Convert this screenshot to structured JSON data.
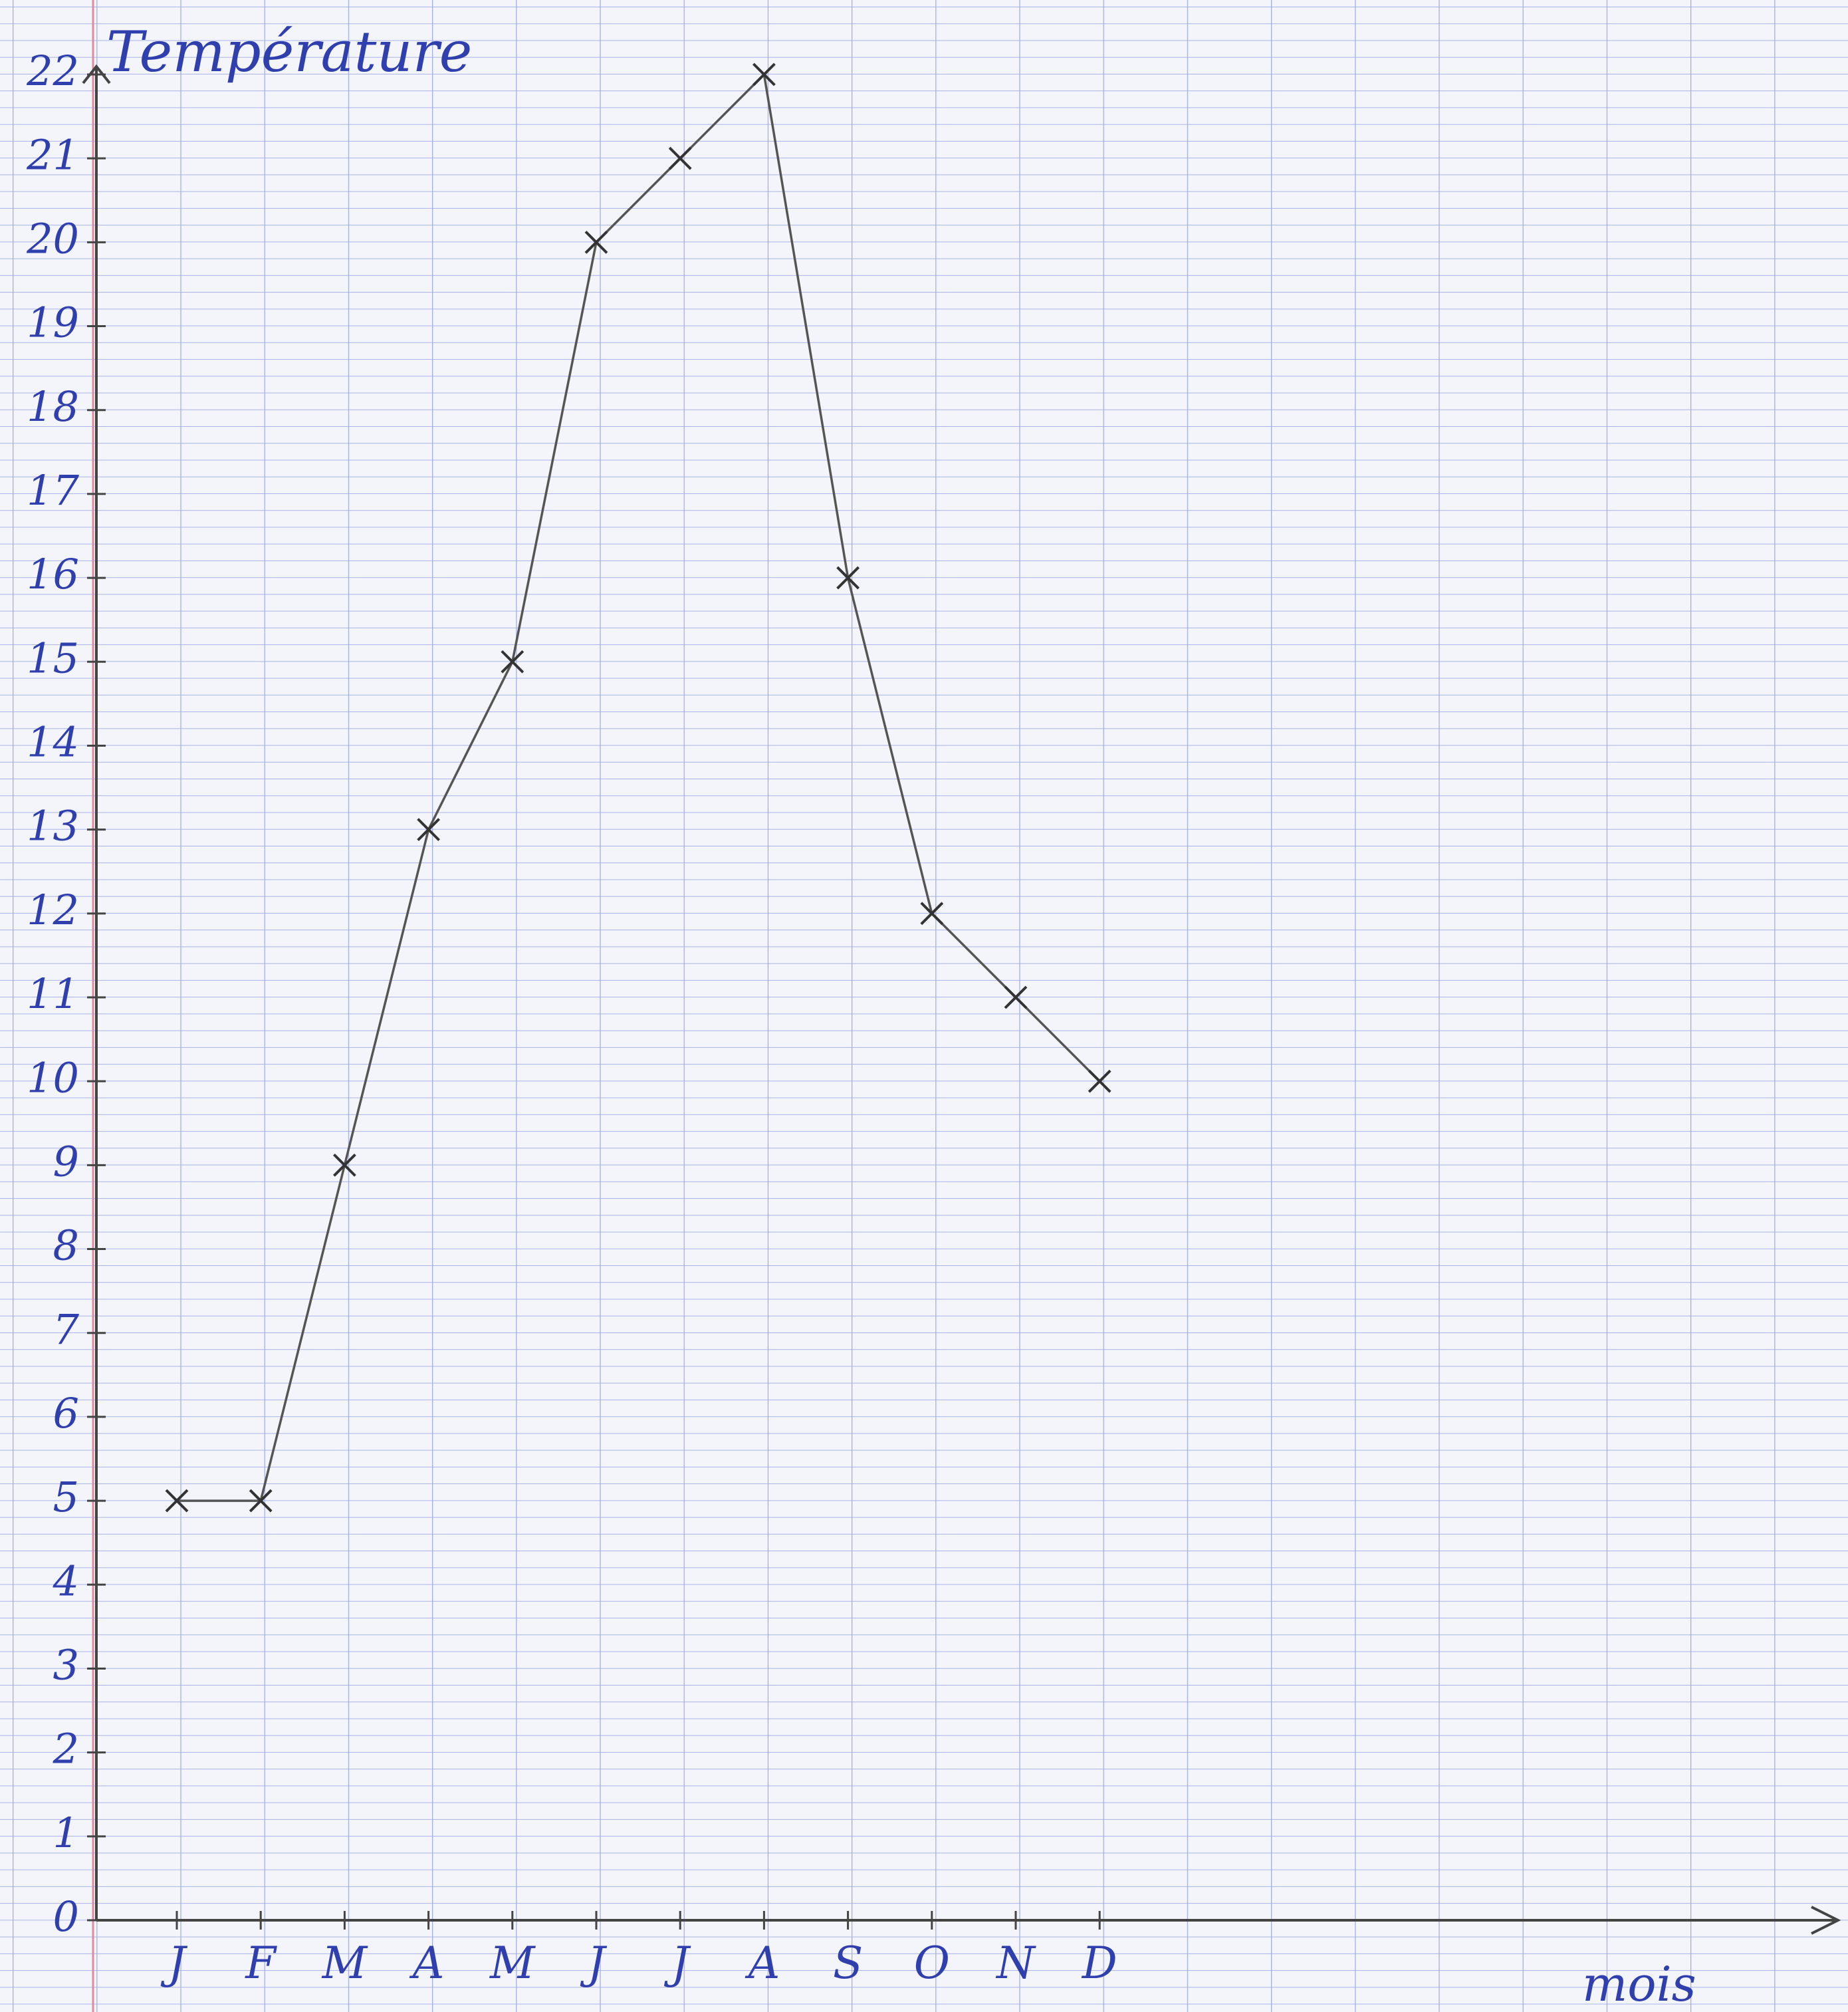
{
  "chart_data": {
    "type": "line",
    "title": "Température",
    "x_label": "mois",
    "categories": [
      "J",
      "F",
      "M",
      "A",
      "M",
      "J",
      "J",
      "A",
      "S",
      "O",
      "N",
      "D"
    ],
    "values": [
      5,
      5,
      9,
      13,
      15,
      20,
      21,
      22,
      16,
      12,
      11,
      10
    ],
    "color": "#555555",
    "ylim": [
      0,
      22
    ],
    "yticks": [
      0,
      1,
      2,
      3,
      4,
      5,
      6,
      7,
      8,
      9,
      10,
      11,
      12,
      13,
      14,
      15,
      16,
      17,
      18,
      19,
      20,
      21,
      22
    ]
  }
}
